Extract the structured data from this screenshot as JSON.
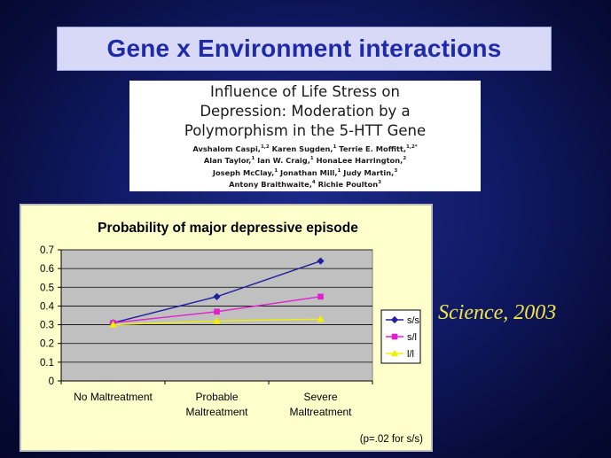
{
  "slide": {
    "title": "Gene x Environment interactions",
    "citation": "Science, 2003"
  },
  "paper": {
    "title_lines": [
      "Influence of Life Stress on",
      "Depression: Moderation by a",
      "Polymorphism in the 5-HTT Gene"
    ],
    "authors_lines": [
      "Avshalom Caspi,^{1,2} Karen Sugden,^{1} Terrie E. Moffitt,^{1,2*}",
      "Alan Taylor,^{1} Ian W. Craig,^{1} HonaLee Harrington,^{2}",
      "Joseph McClay,^{1} Jonathan Mill,^{1} Judy Martin,^{3}",
      "Antony Braithwaite,^{4} Richie Poulton^{3}"
    ]
  },
  "chart_data": {
    "type": "line",
    "title": "Probability of major depressive episode",
    "categories": [
      "No Maltreatment",
      "Probable Maltreatment",
      "Severe Maltreatment"
    ],
    "category_label_lines": [
      [
        "No Maltreatment"
      ],
      [
        "Probable",
        "Maltreatment"
      ],
      [
        "Severe",
        "Maltreatment"
      ]
    ],
    "ylim": [
      0,
      0.7
    ],
    "yticks": [
      "0",
      "0.1",
      "0.2",
      "0.3",
      "0.4",
      "0.5",
      "0.6",
      "0.7"
    ],
    "grid": true,
    "legend_position": "right",
    "series": [
      {
        "name": "s/s",
        "values": [
          0.31,
          0.45,
          0.64
        ],
        "color": "#1f1f9f",
        "marker": "diamond"
      },
      {
        "name": "s/l",
        "values": [
          0.31,
          0.37,
          0.45
        ],
        "color": "#e020d0",
        "marker": "square"
      },
      {
        "name": "l/l",
        "values": [
          0.3,
          0.32,
          0.33
        ],
        "color": "#f0f000",
        "marker": "triangle"
      }
    ],
    "annotation": "(p=.02 for s/s)"
  }
}
